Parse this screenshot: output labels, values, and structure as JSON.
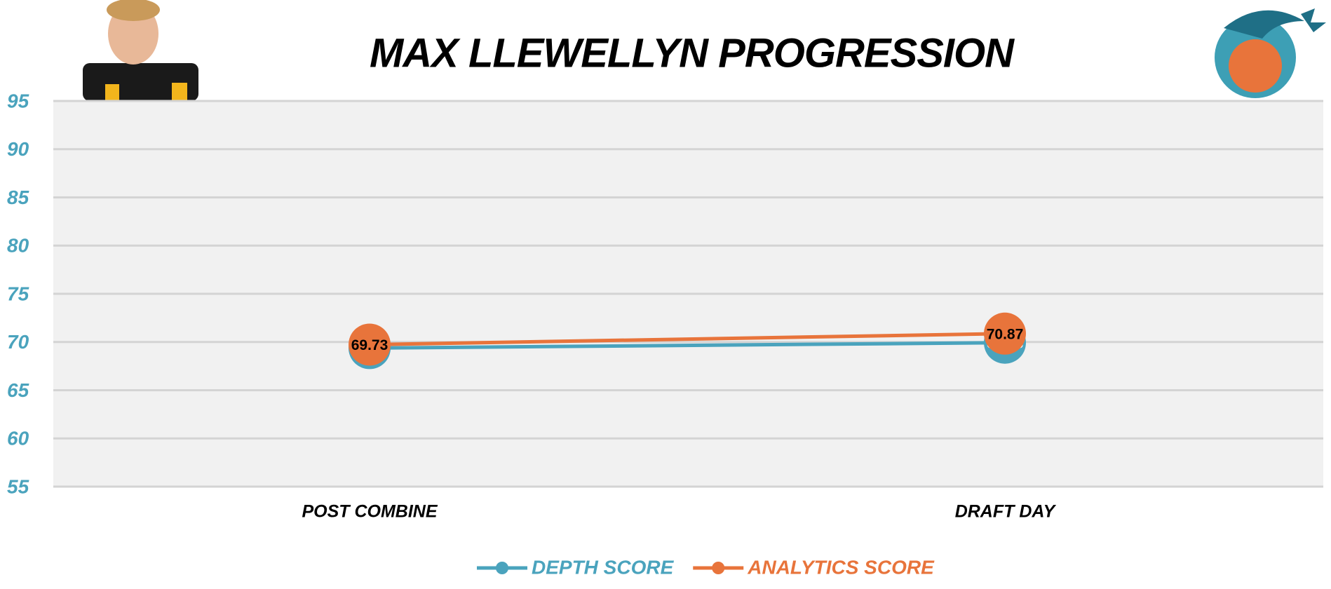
{
  "chart_data": {
    "type": "line",
    "title": "MAX LLEWELLYN PROGRESSION",
    "categories": [
      "POST COMBINE",
      "DRAFT DAY"
    ],
    "series": [
      {
        "name": "DEPTH SCORE",
        "color": "#4aa3bd",
        "values": [
          69.37,
          69.93
        ]
      },
      {
        "name": "ANALYTICS SCORE",
        "color": "#e8743b",
        "values": [
          69.73,
          70.87
        ]
      }
    ],
    "ylim": [
      55,
      95
    ],
    "yticks": [
      55,
      60,
      65,
      70,
      75,
      80,
      85,
      90,
      95
    ],
    "grid": true
  }
}
